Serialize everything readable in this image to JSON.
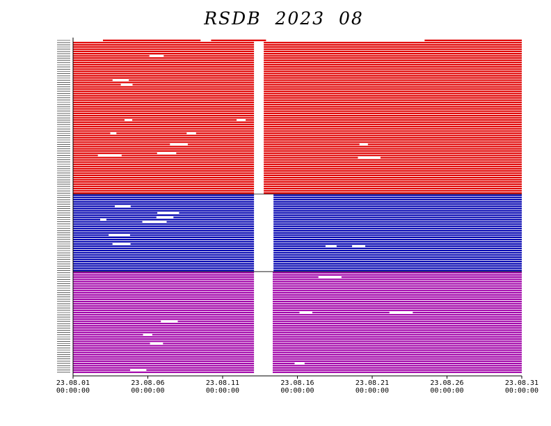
{
  "chart_data": {
    "type": "timeline",
    "title": "RSDB  2023  08",
    "x": {
      "tick_labels": [
        {
          "date": "23.08.01",
          "time": "00:00:00"
        },
        {
          "date": "23.08.06",
          "time": "00:00:00"
        },
        {
          "date": "23.08.11",
          "time": "00:00:00"
        },
        {
          "date": "23.08.16",
          "time": "00:00:00"
        },
        {
          "date": "23.08.21",
          "time": "00:00:00"
        },
        {
          "date": "23.08.26",
          "time": "00:00:00"
        },
        {
          "date": "23.08.31",
          "time": "00:00:00"
        }
      ],
      "range": [
        "2023-08-01 00:00",
        "2023-08-31 00:00"
      ]
    },
    "groups": [
      {
        "color": "#e00000",
        "rows": 70,
        "gap_days": [
          12.1,
          12.75
        ]
      },
      {
        "color": "#0000b0",
        "rows": 35,
        "gap_days": [
          12.1,
          13.4
        ]
      },
      {
        "color": "#a000a8",
        "rows": 46,
        "gap_days": [
          12.1,
          13.35
        ]
      }
    ]
  }
}
